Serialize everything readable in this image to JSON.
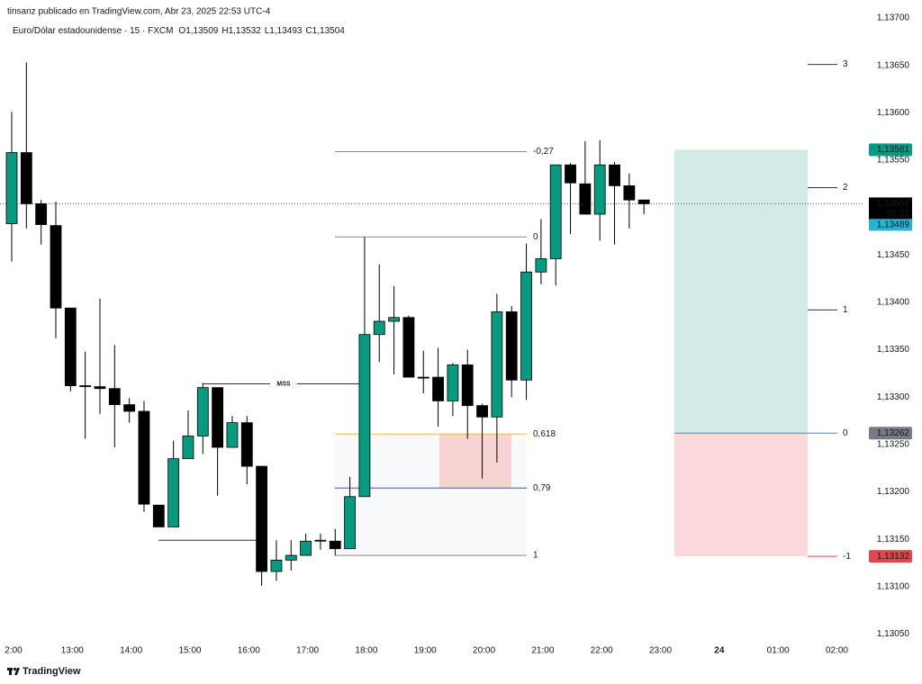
{
  "header": {
    "publisher": "tinsanz publicado en TradingView.com, Abr 23, 2025 22:53 UTC-4",
    "symbol": "Euro/Dólar estadounidense · 15 · FXCM",
    "ohlc": [
      "O1,13509",
      "H1,13532",
      "L1,13493",
      "C1,13504"
    ]
  },
  "chart_data": {
    "type": "candlestick",
    "xticks": [
      "2:00",
      "13:00",
      "14:00",
      "15:00",
      "16:00",
      "17:00",
      "18:00",
      "19:00",
      "20:00",
      "21:00",
      "22:00",
      "23:00",
      "24",
      "01:00",
      "02:00"
    ],
    "open": [
      1.13483,
      1.13558,
      1.13504,
      1.13481,
      1.13394,
      1.13312,
      1.13311,
      1.13309,
      1.13292,
      1.13285,
      1.13186,
      1.13163,
      1.13235,
      1.13259,
      1.1331,
      1.13247,
      1.13273,
      1.13227,
      1.13116,
      1.13128,
      1.13133,
      1.13148,
      1.13148,
      1.1314,
      1.13195,
      1.13366,
      1.1338,
      1.13384,
      1.13321,
      1.13321,
      1.13296,
      1.13334,
      1.13291,
      1.13279,
      1.1339,
      1.13318,
      1.13432,
      1.13446,
      1.13545,
      1.13525,
      1.13493,
      1.13545,
      1.13523,
      1.13508
    ],
    "high": [
      1.13601,
      1.13653,
      1.13508,
      1.13506,
      1.13394,
      1.13348,
      1.13404,
      1.13355,
      1.13299,
      1.13296,
      1.13186,
      1.13254,
      1.13286,
      1.13315,
      1.1331,
      1.1328,
      1.1328,
      1.13227,
      1.13149,
      1.13149,
      1.13156,
      1.13156,
      1.13161,
      1.13216,
      1.13469,
      1.1344,
      1.13417,
      1.13386,
      1.13349,
      1.13352,
      1.13336,
      1.1335,
      1.13293,
      1.13409,
      1.13396,
      1.13462,
      1.13488,
      1.13545,
      1.13547,
      1.1357,
      1.13571,
      1.13548,
      1.13536,
      1.13508
    ],
    "low": [
      1.13443,
      1.13478,
      1.13461,
      1.13362,
      1.13306,
      1.13256,
      1.13282,
      1.13247,
      1.13273,
      1.13179,
      1.13163,
      1.13163,
      1.13235,
      1.1324,
      1.13196,
      1.13247,
      1.13208,
      1.13101,
      1.13106,
      1.13117,
      1.13133,
      1.13139,
      1.13133,
      1.1314,
      1.13195,
      1.13337,
      1.13324,
      1.13321,
      1.13304,
      1.13269,
      1.1328,
      1.13256,
      1.13214,
      1.13231,
      1.133,
      1.13297,
      1.13419,
      1.13418,
      1.13472,
      1.13493,
      1.13465,
      1.13461,
      1.13478,
      1.13493
    ],
    "close": [
      1.13558,
      1.13504,
      1.13482,
      1.13394,
      1.13312,
      1.13311,
      1.13309,
      1.13292,
      1.13285,
      1.13187,
      1.13163,
      1.13235,
      1.13259,
      1.1331,
      1.13247,
      1.13273,
      1.13227,
      1.13116,
      1.13128,
      1.13133,
      1.13148,
      1.13149,
      1.1314,
      1.13195,
      1.13366,
      1.1338,
      1.13384,
      1.13321,
      1.1332,
      1.13296,
      1.13334,
      1.13291,
      1.13279,
      1.1339,
      1.13318,
      1.13432,
      1.13446,
      1.13545,
      1.13526,
      1.13493,
      1.13545,
      1.13523,
      1.13508,
      1.13504
    ],
    "up_color": "#089981",
    "down_color": "#000000",
    "ylim": [
      1.1304,
      1.13719
    ],
    "yticks": [
      {
        "value": 1.137,
        "label": "1,13700"
      },
      {
        "value": 1.1365,
        "label": "1,13650"
      },
      {
        "value": 1.136,
        "label": "1,13600"
      },
      {
        "value": 1.1355,
        "label": "1,13550"
      },
      {
        "value": 1.1345,
        "label": "1,13450"
      },
      {
        "value": 1.134,
        "label": "1,13400"
      },
      {
        "value": 1.1335,
        "label": "1,13350"
      },
      {
        "value": 1.133,
        "label": "1,13300"
      },
      {
        "value": 1.1325,
        "label": "1,13250"
      },
      {
        "value": 1.132,
        "label": "1,13200"
      },
      {
        "value": 1.1315,
        "label": "1,13150"
      },
      {
        "value": 1.131,
        "label": "1,13100"
      },
      {
        "value": 1.1305,
        "label": "1,13050"
      }
    ],
    "fib": {
      "levels": [
        {
          "value": 1.13559,
          "label": "-0,27",
          "color": "#888888"
        },
        {
          "value": 1.13469,
          "label": "0",
          "color": "#888888"
        },
        {
          "value": 1.13261,
          "label": "0,618",
          "color": "#f2b84b"
        },
        {
          "value": 1.13204,
          "label": "0,79",
          "color": "#3a5aa8"
        },
        {
          "value": 1.13133,
          "label": "1",
          "color": "#888888"
        }
      ]
    },
    "mss": {
      "label": "MSS",
      "value": 1.13314
    },
    "sweep_low": {
      "value": 1.13149
    },
    "position": {
      "levels": [
        {
          "value": 1.13651,
          "label": "3"
        },
        {
          "value": 1.13521,
          "label": "2"
        },
        {
          "value": 1.13392,
          "label": "1"
        },
        {
          "value": 1.13262,
          "label": "0",
          "price_label": "1,13262"
        },
        {
          "value": 1.13132,
          "label": "-1",
          "price_label": "1,13132"
        }
      ],
      "target": {
        "value": 1.13561,
        "label": "1,13561"
      },
      "profit_color": "#d2ebe6",
      "loss_color": "#fbd9da"
    },
    "last": {
      "value": 1.13504,
      "label": "1,13504",
      "countdown": "06:35"
    },
    "bid": {
      "value": 1.13489,
      "label": "1,13489"
    }
  },
  "footer": "TradingView"
}
